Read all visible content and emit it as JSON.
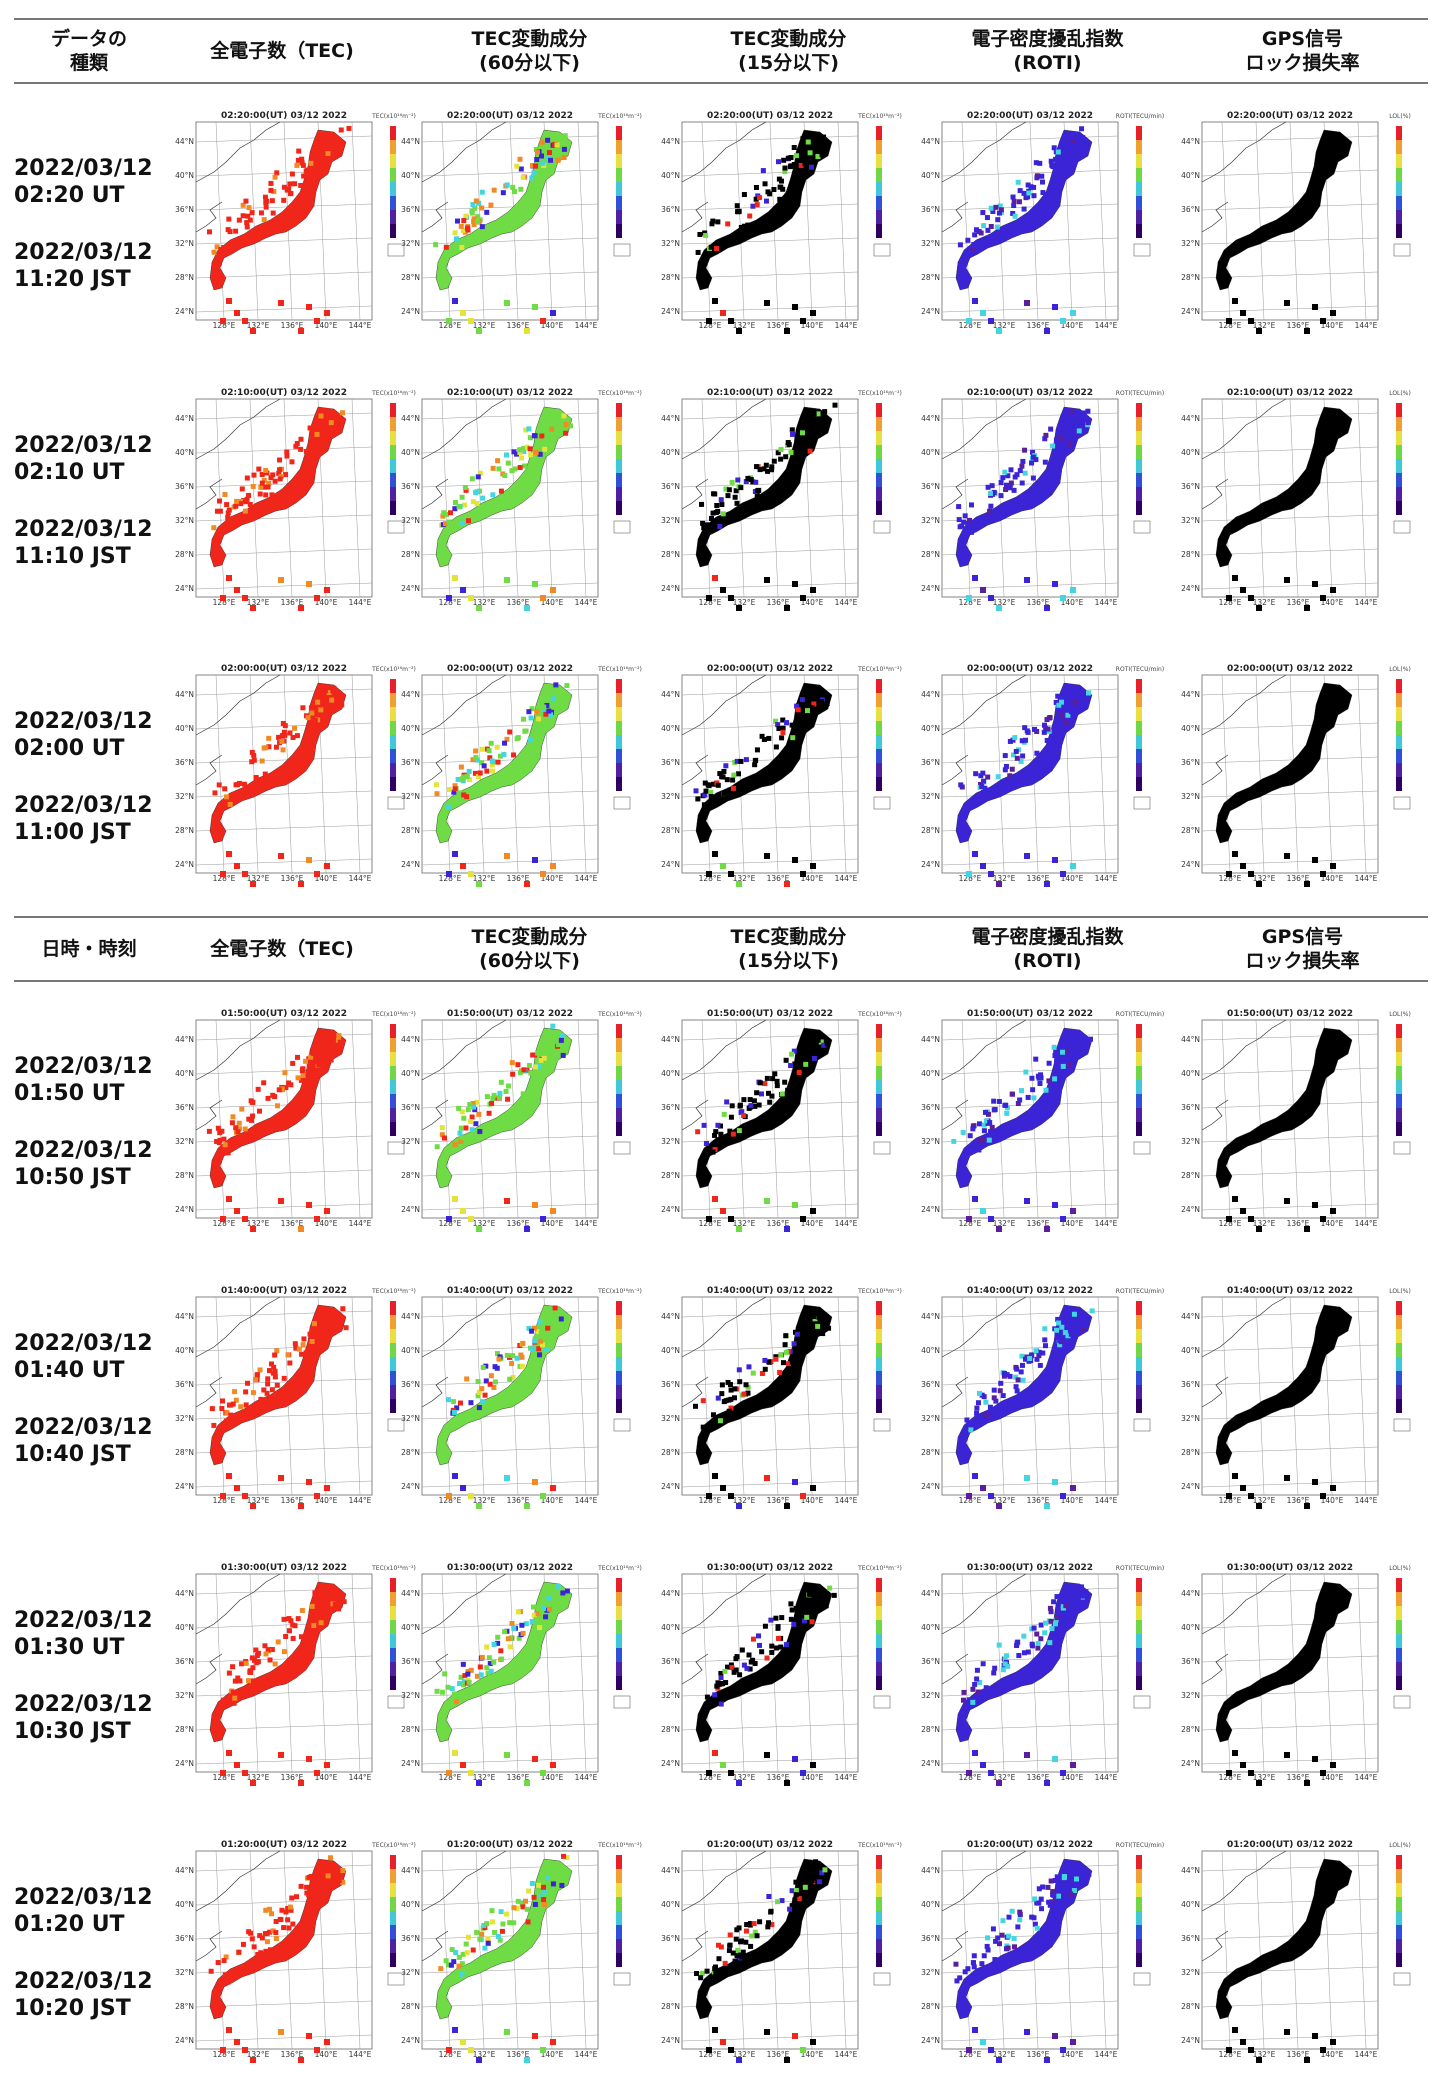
{
  "chart_data": {
    "type": "heatmap",
    "lat_ticks": [
      "44°N",
      "40°N",
      "36°N",
      "32°N",
      "28°N",
      "24°N"
    ],
    "lon_ticks": [
      "128°E",
      "132°E",
      "136°E",
      "140°E",
      "144°E"
    ],
    "columns": [
      {
        "key": "tec",
        "line1": "全電子数（TEC)",
        "line2": "",
        "unit": "TEC(x10¹⁶m⁻²)",
        "color_value": "red"
      },
      {
        "key": "dtec60",
        "line1": "TEC変動成分",
        "line2": "(60分以下)",
        "unit": "TEC(x10¹⁶m⁻²)",
        "color_value": "mixed-green"
      },
      {
        "key": "dtec15",
        "line1": "TEC変動成分",
        "line2": "(15分以下)",
        "unit": "TEC(x10¹⁶m⁻²)",
        "color_value": "black"
      },
      {
        "key": "roti",
        "line1": "電子密度擾乱指数",
        "line2": "(ROTI)",
        "unit": "ROTI(TECU/min)",
        "color_value": "blue"
      },
      {
        "key": "lol",
        "line1": "GPS信号",
        "line2": "ロック損失率",
        "unit": "LOL(%)",
        "color_value": "black"
      }
    ],
    "header_top": {
      "first_col_line1": "データの",
      "first_col_line2": "種類"
    },
    "header_bottom": {
      "first_col_line1": "日時・時刻",
      "first_col_line2": ""
    },
    "rows": [
      {
        "utc_date": "2022/03/12",
        "utc_time": "02:20 UT",
        "jst_date": "2022/03/12",
        "jst_time": "11:20 JST",
        "map_title": "02:20:00(UT) 03/12 2022"
      },
      {
        "utc_date": "2022/03/12",
        "utc_time": "02:10 UT",
        "jst_date": "2022/03/12",
        "jst_time": "11:10 JST",
        "map_title": "02:10:00(UT) 03/12 2022"
      },
      {
        "utc_date": "2022/03/12",
        "utc_time": "02:00 UT",
        "jst_date": "2022/03/12",
        "jst_time": "11:00 JST",
        "map_title": "02:00:00(UT) 03/12 2022"
      },
      {
        "utc_date": "2022/03/12",
        "utc_time": "01:50 UT",
        "jst_date": "2022/03/12",
        "jst_time": "10:50 JST",
        "map_title": "01:50:00(UT) 03/12 2022"
      },
      {
        "utc_date": "2022/03/12",
        "utc_time": "01:40 UT",
        "jst_date": "2022/03/12",
        "jst_time": "10:40 JST",
        "map_title": "01:40:00(UT) 03/12 2022"
      },
      {
        "utc_date": "2022/03/12",
        "utc_time": "01:30 UT",
        "jst_date": "2022/03/12",
        "jst_time": "10:30 JST",
        "map_title": "01:30:00(UT) 03/12 2022"
      },
      {
        "utc_date": "2022/03/12",
        "utc_time": "01:20 UT",
        "jst_date": "2022/03/12",
        "jst_time": "10:20 JST",
        "map_title": "01:20:00(UT) 03/12 2022"
      }
    ],
    "grid": true,
    "legend": "right-colorbar"
  },
  "colors": {
    "red": "#f0261b",
    "orange": "#f08a24",
    "green": "#6fdb45",
    "yellow": "#e3e33a",
    "cyan": "#44d6e0",
    "blue": "#3a24d6",
    "purple": "#5b1f9a",
    "black": "#000000",
    "grid": "#9a9a9a"
  }
}
